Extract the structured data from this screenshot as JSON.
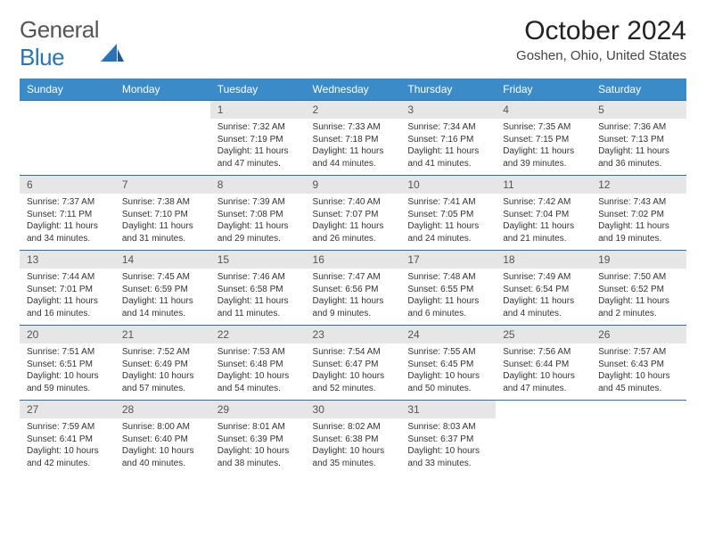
{
  "brand": {
    "part1": "General",
    "part2": "Blue"
  },
  "header": {
    "title": "October 2024",
    "location": "Goshen, Ohio, United States"
  },
  "colors": {
    "header_bg": "#3b8bc9",
    "header_text": "#ffffff",
    "daynum_bg": "#e6e6e6",
    "row_border": "#2e6fa6",
    "text": "#333333",
    "brand_gray": "#555555",
    "brand_blue": "#2a73b8"
  },
  "fonts": {
    "title_size": 30,
    "location_size": 15,
    "th_size": 12,
    "daynum_size": 12,
    "body_size": 10
  },
  "weekdays": [
    "Sunday",
    "Monday",
    "Tuesday",
    "Wednesday",
    "Thursday",
    "Friday",
    "Saturday"
  ],
  "weeks": [
    [
      null,
      null,
      {
        "n": "1",
        "l1": "Sunrise: 7:32 AM",
        "l2": "Sunset: 7:19 PM",
        "l3": "Daylight: 11 hours",
        "l4": "and 47 minutes."
      },
      {
        "n": "2",
        "l1": "Sunrise: 7:33 AM",
        "l2": "Sunset: 7:18 PM",
        "l3": "Daylight: 11 hours",
        "l4": "and 44 minutes."
      },
      {
        "n": "3",
        "l1": "Sunrise: 7:34 AM",
        "l2": "Sunset: 7:16 PM",
        "l3": "Daylight: 11 hours",
        "l4": "and 41 minutes."
      },
      {
        "n": "4",
        "l1": "Sunrise: 7:35 AM",
        "l2": "Sunset: 7:15 PM",
        "l3": "Daylight: 11 hours",
        "l4": "and 39 minutes."
      },
      {
        "n": "5",
        "l1": "Sunrise: 7:36 AM",
        "l2": "Sunset: 7:13 PM",
        "l3": "Daylight: 11 hours",
        "l4": "and 36 minutes."
      }
    ],
    [
      {
        "n": "6",
        "l1": "Sunrise: 7:37 AM",
        "l2": "Sunset: 7:11 PM",
        "l3": "Daylight: 11 hours",
        "l4": "and 34 minutes."
      },
      {
        "n": "7",
        "l1": "Sunrise: 7:38 AM",
        "l2": "Sunset: 7:10 PM",
        "l3": "Daylight: 11 hours",
        "l4": "and 31 minutes."
      },
      {
        "n": "8",
        "l1": "Sunrise: 7:39 AM",
        "l2": "Sunset: 7:08 PM",
        "l3": "Daylight: 11 hours",
        "l4": "and 29 minutes."
      },
      {
        "n": "9",
        "l1": "Sunrise: 7:40 AM",
        "l2": "Sunset: 7:07 PM",
        "l3": "Daylight: 11 hours",
        "l4": "and 26 minutes."
      },
      {
        "n": "10",
        "l1": "Sunrise: 7:41 AM",
        "l2": "Sunset: 7:05 PM",
        "l3": "Daylight: 11 hours",
        "l4": "and 24 minutes."
      },
      {
        "n": "11",
        "l1": "Sunrise: 7:42 AM",
        "l2": "Sunset: 7:04 PM",
        "l3": "Daylight: 11 hours",
        "l4": "and 21 minutes."
      },
      {
        "n": "12",
        "l1": "Sunrise: 7:43 AM",
        "l2": "Sunset: 7:02 PM",
        "l3": "Daylight: 11 hours",
        "l4": "and 19 minutes."
      }
    ],
    [
      {
        "n": "13",
        "l1": "Sunrise: 7:44 AM",
        "l2": "Sunset: 7:01 PM",
        "l3": "Daylight: 11 hours",
        "l4": "and 16 minutes."
      },
      {
        "n": "14",
        "l1": "Sunrise: 7:45 AM",
        "l2": "Sunset: 6:59 PM",
        "l3": "Daylight: 11 hours",
        "l4": "and 14 minutes."
      },
      {
        "n": "15",
        "l1": "Sunrise: 7:46 AM",
        "l2": "Sunset: 6:58 PM",
        "l3": "Daylight: 11 hours",
        "l4": "and 11 minutes."
      },
      {
        "n": "16",
        "l1": "Sunrise: 7:47 AM",
        "l2": "Sunset: 6:56 PM",
        "l3": "Daylight: 11 hours",
        "l4": "and 9 minutes."
      },
      {
        "n": "17",
        "l1": "Sunrise: 7:48 AM",
        "l2": "Sunset: 6:55 PM",
        "l3": "Daylight: 11 hours",
        "l4": "and 6 minutes."
      },
      {
        "n": "18",
        "l1": "Sunrise: 7:49 AM",
        "l2": "Sunset: 6:54 PM",
        "l3": "Daylight: 11 hours",
        "l4": "and 4 minutes."
      },
      {
        "n": "19",
        "l1": "Sunrise: 7:50 AM",
        "l2": "Sunset: 6:52 PM",
        "l3": "Daylight: 11 hours",
        "l4": "and 2 minutes."
      }
    ],
    [
      {
        "n": "20",
        "l1": "Sunrise: 7:51 AM",
        "l2": "Sunset: 6:51 PM",
        "l3": "Daylight: 10 hours",
        "l4": "and 59 minutes."
      },
      {
        "n": "21",
        "l1": "Sunrise: 7:52 AM",
        "l2": "Sunset: 6:49 PM",
        "l3": "Daylight: 10 hours",
        "l4": "and 57 minutes."
      },
      {
        "n": "22",
        "l1": "Sunrise: 7:53 AM",
        "l2": "Sunset: 6:48 PM",
        "l3": "Daylight: 10 hours",
        "l4": "and 54 minutes."
      },
      {
        "n": "23",
        "l1": "Sunrise: 7:54 AM",
        "l2": "Sunset: 6:47 PM",
        "l3": "Daylight: 10 hours",
        "l4": "and 52 minutes."
      },
      {
        "n": "24",
        "l1": "Sunrise: 7:55 AM",
        "l2": "Sunset: 6:45 PM",
        "l3": "Daylight: 10 hours",
        "l4": "and 50 minutes."
      },
      {
        "n": "25",
        "l1": "Sunrise: 7:56 AM",
        "l2": "Sunset: 6:44 PM",
        "l3": "Daylight: 10 hours",
        "l4": "and 47 minutes."
      },
      {
        "n": "26",
        "l1": "Sunrise: 7:57 AM",
        "l2": "Sunset: 6:43 PM",
        "l3": "Daylight: 10 hours",
        "l4": "and 45 minutes."
      }
    ],
    [
      {
        "n": "27",
        "l1": "Sunrise: 7:59 AM",
        "l2": "Sunset: 6:41 PM",
        "l3": "Daylight: 10 hours",
        "l4": "and 42 minutes."
      },
      {
        "n": "28",
        "l1": "Sunrise: 8:00 AM",
        "l2": "Sunset: 6:40 PM",
        "l3": "Daylight: 10 hours",
        "l4": "and 40 minutes."
      },
      {
        "n": "29",
        "l1": "Sunrise: 8:01 AM",
        "l2": "Sunset: 6:39 PM",
        "l3": "Daylight: 10 hours",
        "l4": "and 38 minutes."
      },
      {
        "n": "30",
        "l1": "Sunrise: 8:02 AM",
        "l2": "Sunset: 6:38 PM",
        "l3": "Daylight: 10 hours",
        "l4": "and 35 minutes."
      },
      {
        "n": "31",
        "l1": "Sunrise: 8:03 AM",
        "l2": "Sunset: 6:37 PM",
        "l3": "Daylight: 10 hours",
        "l4": "and 33 minutes."
      },
      null,
      null
    ]
  ]
}
